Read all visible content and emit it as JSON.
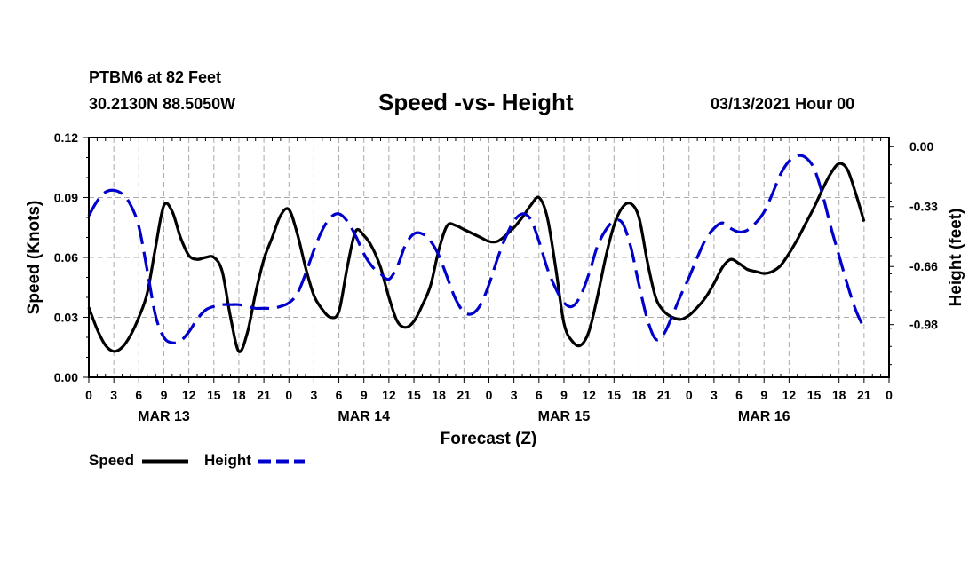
{
  "header": {
    "station": "PTBM6 at 82 Feet",
    "coords": "30.2130N 88.5050W",
    "title": "Speed -vs- Height",
    "forecast": "03/13/2021 Hour 00"
  },
  "legend": {
    "speed_label": "Speed",
    "height_label": "Height"
  },
  "colors": {
    "speed": "#000000",
    "height": "#0000cc",
    "grid": "#aaaaaa"
  },
  "chart_data": {
    "type": "line",
    "title": "Speed -vs- Height",
    "xlabel": "Forecast (Z)",
    "ylabel": "Speed (Knots)",
    "y2label": "Height (feet)",
    "xlim": [
      0,
      96
    ],
    "ylim": [
      0,
      0.12
    ],
    "y2lim": [
      -1.27,
      0.05
    ],
    "x_ticks": [
      0,
      3,
      6,
      9,
      12,
      15,
      18,
      21,
      24,
      27,
      30,
      33,
      36,
      39,
      42,
      45,
      48,
      51,
      54,
      57,
      60,
      63,
      66,
      69,
      72,
      75,
      78,
      81,
      84,
      87,
      90,
      93,
      96
    ],
    "x_tick_labels": [
      "0",
      "3",
      "6",
      "9",
      "12",
      "15",
      "18",
      "21",
      "0",
      "3",
      "6",
      "9",
      "12",
      "15",
      "18",
      "21",
      "0",
      "3",
      "6",
      "9",
      "12",
      "15",
      "18",
      "21",
      "0",
      "3",
      "6",
      "9",
      "12",
      "15",
      "18",
      "21",
      "0"
    ],
    "y_ticks": [
      0.0,
      0.03,
      0.06,
      0.09,
      0.12
    ],
    "y_tick_labels": [
      "0.00",
      "0.03",
      "0.06",
      "0.09",
      "0.12"
    ],
    "y2_ticks": [
      0.0,
      -0.33,
      -0.66,
      -0.98
    ],
    "y2_tick_labels": [
      "0.00",
      "-0.33",
      "-0.66",
      "-0.98"
    ],
    "day_labels": [
      {
        "x": 9,
        "label": "MAR 13"
      },
      {
        "x": 33,
        "label": "MAR 14"
      },
      {
        "x": 57,
        "label": "MAR 15"
      },
      {
        "x": 81,
        "label": "MAR 16"
      }
    ],
    "grid": true,
    "series": [
      {
        "name": "Speed",
        "axis": "left",
        "style": "solid",
        "points": [
          [
            0,
            0.035
          ],
          [
            1,
            0.024
          ],
          [
            2,
            0.016
          ],
          [
            3,
            0.013
          ],
          [
            4,
            0.015
          ],
          [
            5,
            0.021
          ],
          [
            6,
            0.03
          ],
          [
            7,
            0.042
          ],
          [
            8,
            0.065
          ],
          [
            9,
            0.086
          ],
          [
            10,
            0.083
          ],
          [
            11,
            0.07
          ],
          [
            12,
            0.061
          ],
          [
            13,
            0.059
          ],
          [
            14,
            0.06
          ],
          [
            15,
            0.06
          ],
          [
            16,
            0.053
          ],
          [
            17,
            0.03
          ],
          [
            18,
            0.013
          ],
          [
            19,
            0.022
          ],
          [
            20,
            0.042
          ],
          [
            21,
            0.059
          ],
          [
            22,
            0.07
          ],
          [
            23,
            0.081
          ],
          [
            24,
            0.084
          ],
          [
            25,
            0.072
          ],
          [
            26,
            0.055
          ],
          [
            27,
            0.041
          ],
          [
            28,
            0.034
          ],
          [
            29,
            0.03
          ],
          [
            30,
            0.033
          ],
          [
            31,
            0.055
          ],
          [
            32,
            0.073
          ],
          [
            33,
            0.071
          ],
          [
            34,
            0.065
          ],
          [
            35,
            0.055
          ],
          [
            36,
            0.04
          ],
          [
            37,
            0.028
          ],
          [
            38,
            0.025
          ],
          [
            39,
            0.028
          ],
          [
            40,
            0.036
          ],
          [
            41,
            0.046
          ],
          [
            42,
            0.064
          ],
          [
            43,
            0.076
          ],
          [
            44,
            0.076
          ],
          [
            45,
            0.074
          ],
          [
            46,
            0.072
          ],
          [
            47,
            0.07
          ],
          [
            48,
            0.068
          ],
          [
            49,
            0.068
          ],
          [
            50,
            0.071
          ],
          [
            51,
            0.075
          ],
          [
            52,
            0.08
          ],
          [
            53,
            0.086
          ],
          [
            54,
            0.09
          ],
          [
            55,
            0.08
          ],
          [
            56,
            0.055
          ],
          [
            57,
            0.027
          ],
          [
            58,
            0.018
          ],
          [
            59,
            0.016
          ],
          [
            60,
            0.023
          ],
          [
            61,
            0.04
          ],
          [
            62,
            0.06
          ],
          [
            63,
            0.076
          ],
          [
            64,
            0.085
          ],
          [
            65,
            0.087
          ],
          [
            66,
            0.08
          ],
          [
            67,
            0.058
          ],
          [
            68,
            0.04
          ],
          [
            69,
            0.033
          ],
          [
            70,
            0.03
          ],
          [
            71,
            0.029
          ],
          [
            72,
            0.031
          ],
          [
            73,
            0.035
          ],
          [
            74,
            0.04
          ],
          [
            75,
            0.047
          ],
          [
            76,
            0.055
          ],
          [
            77,
            0.059
          ],
          [
            78,
            0.057
          ],
          [
            79,
            0.054
          ],
          [
            80,
            0.053
          ],
          [
            81,
            0.052
          ],
          [
            82,
            0.053
          ],
          [
            83,
            0.056
          ],
          [
            84,
            0.062
          ],
          [
            85,
            0.069
          ],
          [
            86,
            0.077
          ],
          [
            87,
            0.085
          ],
          [
            88,
            0.094
          ],
          [
            89,
            0.102
          ],
          [
            90,
            0.107
          ],
          [
            91,
            0.104
          ],
          [
            92,
            0.092
          ],
          [
            93,
            0.078
          ]
        ]
      },
      {
        "name": "Height",
        "axis": "right",
        "style": "dashed",
        "points": [
          [
            0,
            -0.38
          ],
          [
            1,
            -0.3
          ],
          [
            2,
            -0.25
          ],
          [
            3,
            -0.24
          ],
          [
            4,
            -0.26
          ],
          [
            5,
            -0.32
          ],
          [
            6,
            -0.44
          ],
          [
            7,
            -0.68
          ],
          [
            8,
            -0.93
          ],
          [
            9,
            -1.05
          ],
          [
            10,
            -1.08
          ],
          [
            11,
            -1.07
          ],
          [
            12,
            -1.02
          ],
          [
            13,
            -0.95
          ],
          [
            14,
            -0.9
          ],
          [
            15,
            -0.88
          ],
          [
            16,
            -0.87
          ],
          [
            17,
            -0.87
          ],
          [
            18,
            -0.87
          ],
          [
            19,
            -0.88
          ],
          [
            20,
            -0.89
          ],
          [
            21,
            -0.89
          ],
          [
            22,
            -0.89
          ],
          [
            23,
            -0.88
          ],
          [
            24,
            -0.86
          ],
          [
            25,
            -0.81
          ],
          [
            26,
            -0.7
          ],
          [
            27,
            -0.57
          ],
          [
            28,
            -0.46
          ],
          [
            29,
            -0.39
          ],
          [
            30,
            -0.37
          ],
          [
            31,
            -0.41
          ],
          [
            32,
            -0.49
          ],
          [
            33,
            -0.59
          ],
          [
            34,
            -0.66
          ],
          [
            35,
            -0.7
          ],
          [
            36,
            -0.73
          ],
          [
            37,
            -0.66
          ],
          [
            38,
            -0.54
          ],
          [
            39,
            -0.48
          ],
          [
            40,
            -0.48
          ],
          [
            41,
            -0.52
          ],
          [
            42,
            -0.6
          ],
          [
            43,
            -0.72
          ],
          [
            44,
            -0.84
          ],
          [
            45,
            -0.91
          ],
          [
            46,
            -0.92
          ],
          [
            47,
            -0.87
          ],
          [
            48,
            -0.76
          ],
          [
            49,
            -0.62
          ],
          [
            50,
            -0.5
          ],
          [
            51,
            -0.41
          ],
          [
            52,
            -0.37
          ],
          [
            53,
            -0.4
          ],
          [
            54,
            -0.52
          ],
          [
            55,
            -0.67
          ],
          [
            56,
            -0.78
          ],
          [
            57,
            -0.86
          ],
          [
            58,
            -0.88
          ],
          [
            59,
            -0.82
          ],
          [
            60,
            -0.7
          ],
          [
            61,
            -0.55
          ],
          [
            62,
            -0.46
          ],
          [
            63,
            -0.41
          ],
          [
            64,
            -0.42
          ],
          [
            65,
            -0.55
          ],
          [
            66,
            -0.76
          ],
          [
            67,
            -0.95
          ],
          [
            68,
            -1.06
          ],
          [
            69,
            -1.03
          ],
          [
            70,
            -0.93
          ],
          [
            71,
            -0.82
          ],
          [
            72,
            -0.72
          ],
          [
            73,
            -0.61
          ],
          [
            74,
            -0.51
          ],
          [
            75,
            -0.45
          ],
          [
            76,
            -0.42
          ],
          [
            77,
            -0.45
          ],
          [
            78,
            -0.47
          ],
          [
            79,
            -0.46
          ],
          [
            80,
            -0.42
          ],
          [
            81,
            -0.36
          ],
          [
            82,
            -0.26
          ],
          [
            83,
            -0.15
          ],
          [
            84,
            -0.08
          ],
          [
            85,
            -0.05
          ],
          [
            86,
            -0.06
          ],
          [
            87,
            -0.12
          ],
          [
            88,
            -0.26
          ],
          [
            89,
            -0.44
          ],
          [
            90,
            -0.6
          ],
          [
            91,
            -0.76
          ],
          [
            92,
            -0.9
          ],
          [
            93,
            -1.0
          ]
        ]
      }
    ]
  }
}
